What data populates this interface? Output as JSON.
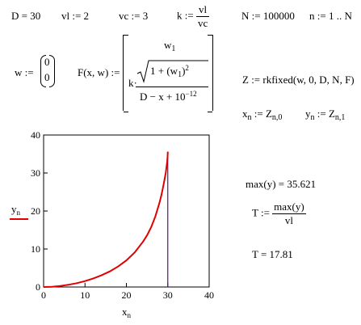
{
  "defs": {
    "d_def": "D = 30",
    "v1_def": "vl := 2",
    "vc_def": "vc := 3",
    "k_lhs": "k :=",
    "k_num": "vl",
    "k_den": "vc",
    "n_def": "N := 100000",
    "range_def": "n := 1 .. N"
  },
  "w_vec": {
    "lhs": "w :=",
    "top": "0",
    "bottom": "0"
  },
  "func": {
    "lhs": "F(x, w) :=",
    "row1_var": "w",
    "row1_sub": "1",
    "k_text": "k·",
    "sqrt_inner": "1 + (w",
    "sqrt_sub": "1",
    "sqrt_close": ")",
    "sqrt_sup": "2",
    "den_text": "D − x + 10",
    "den_sup": "−12"
  },
  "solver": {
    "z_def": "Z := rkfixed(w, 0, D, N, F)"
  },
  "assign": {
    "x_var": "x",
    "x_sub": "n",
    "x_eq": " := Z",
    "x_zsub": "n,0",
    "y_var": "y",
    "y_sub": "n",
    "y_eq": " := Z",
    "y_zsub": "n,1"
  },
  "results": {
    "max_text": "max(y) = 35.621",
    "t_lhs": "T :=",
    "t_num": "max(y)",
    "t_den": "vl",
    "t_value": "T = 17.81"
  },
  "chart_data": {
    "type": "line",
    "title": "",
    "xlabel": "x",
    "xlabel_sub": "n",
    "ylabel": "y",
    "ylabel_sub": "n",
    "xlim": [
      0,
      40
    ],
    "ylim": [
      0,
      40
    ],
    "xticks": [
      "0",
      "10",
      "20",
      "30",
      "40"
    ],
    "yticks": [
      "0",
      "10",
      "20",
      "30",
      "40"
    ],
    "grid": false,
    "colors": {
      "curve": "#e00000",
      "asymptote": "#5a1080"
    },
    "series": [
      {
        "x": [
          0,
          2,
          4,
          6,
          8,
          10,
          12,
          14,
          16,
          18,
          20,
          22,
          24,
          25,
          26,
          27,
          28,
          28.5,
          29,
          29.3,
          29.5,
          29.7,
          29.85,
          29.95,
          30
        ],
        "y": [
          0,
          0.07,
          0.28,
          0.6,
          1.0,
          1.55,
          2.25,
          3.1,
          4.1,
          5.4,
          7.0,
          9.1,
          11.9,
          13.6,
          15.8,
          18.6,
          22.2,
          24.4,
          27.0,
          28.8,
          30.0,
          31.6,
          33.0,
          34.3,
          35.6
        ]
      }
    ],
    "asymptote": {
      "x": 30,
      "y_top": 35.6
    }
  }
}
